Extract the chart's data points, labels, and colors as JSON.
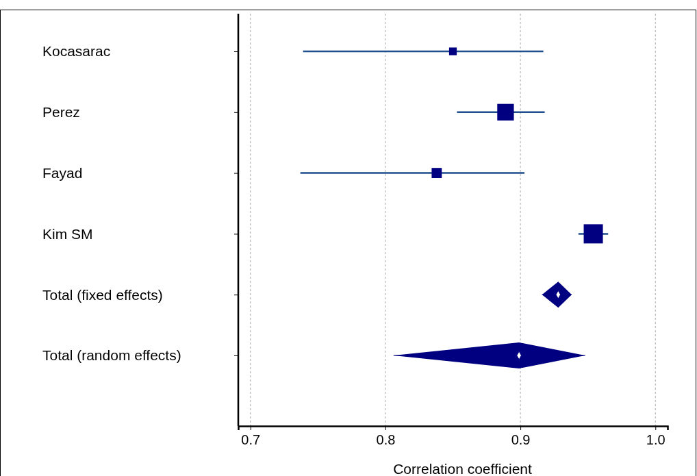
{
  "chart_data": {
    "type": "scatter",
    "orientation": "horizontal",
    "xlabel": "Correlation coefficient",
    "categories": [
      "Kocasarac",
      "Perez",
      "Fayad",
      "Kim SM",
      "Total (fixed effects)",
      "Total (random effects)"
    ],
    "xlim": [
      0.691,
      1.009
    ],
    "xticks": [
      0.7,
      0.8,
      0.9,
      {
        "value": 1,
        "label": "1.0"
      }
    ],
    "grid": "x",
    "series": [
      {
        "marker": "square",
        "color": "#000080",
        "values": [
          0.85,
          0.889,
          0.838,
          0.954,
          null,
          null
        ],
        "sizes": [
          0.16,
          0.75,
          0.28,
          1,
          null,
          null
        ],
        "errors": [
          [
            0.739,
            0.917
          ],
          [
            0.853,
            0.918
          ],
          [
            0.737,
            0.903
          ],
          [
            0.943,
            0.965
          ],
          null,
          null
        ]
      },
      {
        "marker": "diamond",
        "color": "#000080",
        "values": [
          null,
          null,
          null,
          null,
          0.928,
          0.899
        ],
        "errors": [
          null,
          null,
          null,
          null,
          [
            0.916,
            0.938
          ],
          [
            0.806,
            0.948
          ]
        ]
      }
    ]
  }
}
